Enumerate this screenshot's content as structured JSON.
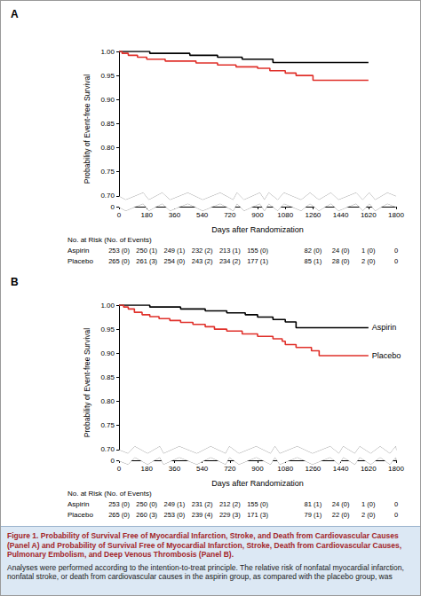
{
  "chart_data": [
    {
      "type": "line",
      "title": "A",
      "x_label": "Days after Randomization",
      "y_label": "Probability of Event-free Survival",
      "xlim": [
        0,
        1800
      ],
      "xticks": [
        0,
        180,
        360,
        540,
        720,
        900,
        1080,
        1260,
        1440,
        1620,
        1800
      ],
      "ylim": [
        0,
        1
      ],
      "yticks": [
        {
          "value": 0,
          "label": "0"
        },
        {
          "value": 0.7,
          "label": "0.70"
        },
        {
          "value": 0.75,
          "label": "0.75"
        },
        {
          "value": 0.8,
          "label": "0.80"
        },
        {
          "value": 0.85,
          "label": "0.85"
        },
        {
          "value": 0.9,
          "label": "0.90"
        },
        {
          "value": 0.95,
          "label": "0.95"
        },
        {
          "value": 1,
          "label": "1.00"
        }
      ],
      "grid": false,
      "legend": "none",
      "line_style": "step",
      "series": [
        {
          "name": "Aspirin",
          "color": "#000000",
          "x": [
            0,
            200,
            460,
            640,
            800,
            1000,
            1620
          ],
          "values": [
            1,
            0.996,
            0.992,
            0.988,
            0.984,
            0.977,
            0.977
          ]
        },
        {
          "name": "Placebo",
          "color": "#e0302a",
          "x": [
            0,
            20,
            60,
            120,
            180,
            300,
            500,
            640,
            760,
            900,
            980,
            1080,
            1150,
            1260,
            1620
          ],
          "values": [
            1,
            0.996,
            0.992,
            0.988,
            0.984,
            0.98,
            0.976,
            0.972,
            0.968,
            0.965,
            0.96,
            0.955,
            0.95,
            0.94,
            0.94
          ]
        }
      ],
      "at_risk": {
        "title": "No. at Risk (No. of Events)",
        "rows": [
          {
            "name": "Aspirin",
            "cells": [
              "253 (0)",
              "250 (1)",
              "249 (1)",
              "232 (2)",
              "213 (1)",
              "155 (0)",
              null,
              "82 (0)",
              "24 (0)",
              "1 (0)",
              "0"
            ]
          },
          {
            "name": "Placebo",
            "cells": [
              "265 (0)",
              "261 (3)",
              "254 (0)",
              "243 (2)",
              "234 (2)",
              "177 (1)",
              null,
              "85 (1)",
              "28 (0)",
              "2 (0)",
              "0"
            ]
          }
        ]
      }
    },
    {
      "type": "line",
      "title": "B",
      "x_label": "Days after Randomization",
      "y_label": "Probability of Event-free Survival",
      "xlim": [
        0,
        1800
      ],
      "xticks": [
        0,
        180,
        360,
        540,
        720,
        900,
        1080,
        1260,
        1440,
        1620,
        1800
      ],
      "ylim": [
        0,
        1
      ],
      "yticks": [
        {
          "value": 0,
          "label": "0"
        },
        {
          "value": 0.7,
          "label": "0.70"
        },
        {
          "value": 0.75,
          "label": "0.75"
        },
        {
          "value": 0.8,
          "label": "0.80"
        },
        {
          "value": 0.85,
          "label": "0.85"
        },
        {
          "value": 0.9,
          "label": "0.90"
        },
        {
          "value": 0.95,
          "label": "0.95"
        },
        {
          "value": 1,
          "label": "1.00"
        }
      ],
      "grid": false,
      "legend": "line_end",
      "line_style": "step",
      "series": [
        {
          "name": "Aspirin",
          "color": "#000000",
          "x": [
            0,
            200,
            400,
            560,
            700,
            820,
            900,
            1000,
            1080,
            1150,
            1620
          ],
          "values": [
            1,
            0.996,
            0.992,
            0.988,
            0.984,
            0.98,
            0.975,
            0.97,
            0.965,
            0.953,
            0.953
          ]
        },
        {
          "name": "Placebo",
          "color": "#e0302a",
          "x": [
            0,
            30,
            60,
            100,
            150,
            200,
            260,
            330,
            400,
            480,
            560,
            620,
            700,
            800,
            900,
            1000,
            1060,
            1080,
            1150,
            1250,
            1300,
            1620
          ],
          "values": [
            1,
            0.996,
            0.992,
            0.985,
            0.98,
            0.976,
            0.972,
            0.968,
            0.964,
            0.96,
            0.955,
            0.95,
            0.946,
            0.94,
            0.935,
            0.93,
            0.925,
            0.918,
            0.912,
            0.905,
            0.895,
            0.895
          ]
        }
      ],
      "at_risk": {
        "title": "No. at Risk (No. of Events)",
        "rows": [
          {
            "name": "Aspirin",
            "cells": [
              "253 (0)",
              "250 (0)",
              "249 (1)",
              "231 (2)",
              "212 (2)",
              "155 (0)",
              null,
              "81 (1)",
              "24 (0)",
              "1 (0)",
              "0"
            ]
          },
          {
            "name": "Placebo",
            "cells": [
              "265 (0)",
              "260 (3)",
              "253 (0)",
              "239 (4)",
              "229 (3)",
              "171 (3)",
              null,
              "79 (1)",
              "22 (0)",
              "2 (0)",
              "0"
            ]
          }
        ]
      }
    }
  ],
  "caption": {
    "title": "Figure 1. Probability of Survival Free of Myocardial Infarction, Stroke, and Death from Cardiovascular Causes (Panel A) and Probability of Survival Free of Myocardial Infarction, Stroke, Death from Cardiovascular Causes, Pulmonary Embolism, and Deep Venous Thrombosis (Panel B).",
    "text": "Analyses were performed according to the intention-to-treat principle. The relative risk of nonfatal myocardial infarction, nonfatal stroke, or death from cardiovascular causes in the aspirin group, as compared with the placebo group, was"
  }
}
